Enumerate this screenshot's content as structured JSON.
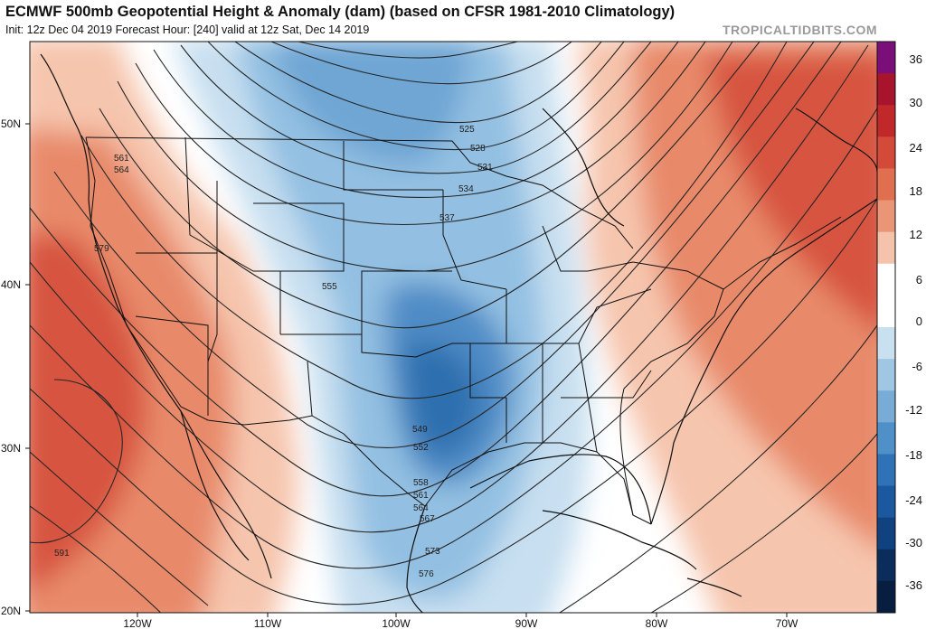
{
  "header": {
    "title": "ECMWF 500mb Geopotential Height & Anomaly (dam) (based on CFSR 1981-2010 Climatology)",
    "subtitle": "Init: 12z Dec 04 2019   Forecast Hour: [240]   valid at 12z Sat, Dec 14 2019",
    "watermark": "TROPICALTIDBITS.COM"
  },
  "lat_labels": [
    "50N",
    "40N",
    "30N",
    "20N"
  ],
  "lon_labels": [
    "120W",
    "110W",
    "100W",
    "90W",
    "80W",
    "70W"
  ],
  "colorbar": {
    "labels": [
      "36",
      "30",
      "24",
      "18",
      "12",
      "6",
      "0",
      "-6",
      "-12",
      "-18",
      "-24",
      "-30",
      "-36"
    ],
    "colors": [
      "#7a0f7a",
      "#a8142b",
      "#c0282a",
      "#d44a39",
      "#e06f50",
      "#eb9577",
      "#f5c3ac",
      "#ffffff",
      "#ffffff",
      "#c8e0ef",
      "#9fc7e4",
      "#78acd7",
      "#5090c9",
      "#3072b8",
      "#1b58a0",
      "#104280",
      "#0a2d5c",
      "#071e40"
    ]
  },
  "contour_labels": [
    "525",
    "528",
    "531",
    "534",
    "537",
    "555",
    "549",
    "552",
    "558",
    "561",
    "564",
    "567",
    "573",
    "576",
    "561",
    "564",
    "579",
    "591"
  ],
  "colors": {
    "warm_strong": "#d7553f",
    "warm_mid": "#e88a6a",
    "warm_light": "#f6c5ad",
    "cold_light": "#c7dff0",
    "cold_mid": "#93c0e2",
    "cold_strong": "#4f8cc6",
    "cold_core": "#2f6faf"
  }
}
